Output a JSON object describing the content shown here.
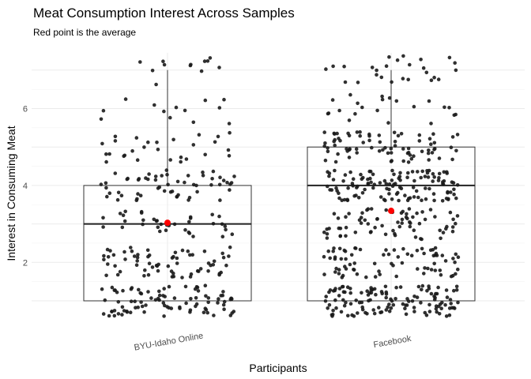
{
  "chart_data": {
    "type": "boxplot",
    "title": "Meat Consumption Interest Across Samples",
    "subtitle": "Red point is the average",
    "xlabel": "Participants",
    "ylabel": "Interest in Consuming Meat",
    "ylim": [
      0.7,
      7.45
    ],
    "yticks": [
      2,
      4,
      6
    ],
    "grid": true,
    "categories": [
      "BYU-Idaho Online",
      "Facebook"
    ],
    "boxes": [
      {
        "category": "BYU-Idaho Online",
        "min": 1,
        "q1": 1,
        "median": 3,
        "q3": 4,
        "max": 7,
        "mean": 3.03,
        "n": 300
      },
      {
        "category": "Facebook",
        "min": 1,
        "q1": 1,
        "median": 4,
        "q3": 5,
        "max": 7,
        "mean": 3.34,
        "n": 520
      }
    ],
    "point_color": "#1a1a1a",
    "mean_color": "#ff0000"
  }
}
